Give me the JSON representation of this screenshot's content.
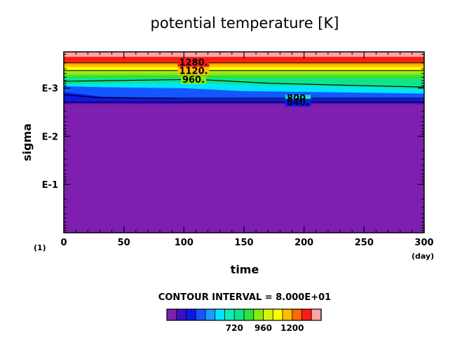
{
  "chart_data": {
    "type": "heatmap",
    "title": "potential temperature [K]",
    "xlabel": "time",
    "ylabel": "sigma",
    "x_unit": "(day)",
    "y_unit": "(1)",
    "xlim": [
      0,
      300
    ],
    "x_ticks": [
      0,
      50,
      100,
      150,
      200,
      250,
      300
    ],
    "y_log_range_exponents": [
      -3.75,
      0
    ],
    "y_ticks": [
      {
        "value": 0.001,
        "label": "E-3"
      },
      {
        "value": 0.01,
        "label": "E-2"
      },
      {
        "value": 0.1,
        "label": "E-1"
      }
    ],
    "contour_interval_text": "CONTOUR INTERVAL = 8.000E+01",
    "contour_levels_K": [
      640,
      800,
      960,
      1120,
      1280
    ],
    "contour_labels": [
      {
        "text": "1280.",
        "time": 108,
        "level": 1280
      },
      {
        "text": "1120.",
        "time": 108,
        "level": 1120
      },
      {
        "text": "960.",
        "time": 108,
        "level": 960
      },
      {
        "text": "800.",
        "time": 195,
        "level": 800
      },
      {
        "text": "640.",
        "time": 195,
        "level": 640
      }
    ],
    "colorbar": {
      "colors": [
        "#7f1fb0",
        "#3a10c8",
        "#0b18e6",
        "#1456ff",
        "#1a9cff",
        "#00e5ff",
        "#12e9b9",
        "#10e48a",
        "#30e03d",
        "#86ea12",
        "#d6f20c",
        "#ffff00",
        "#ffbe00",
        "#ff6a00",
        "#ff1a1a",
        "#ffa5a5"
      ],
      "labels": [
        {
          "text": "720",
          "boundary": 7
        },
        {
          "text": "960",
          "boundary": 10
        },
        {
          "text": "1200",
          "boundary": 13
        }
      ]
    }
  }
}
